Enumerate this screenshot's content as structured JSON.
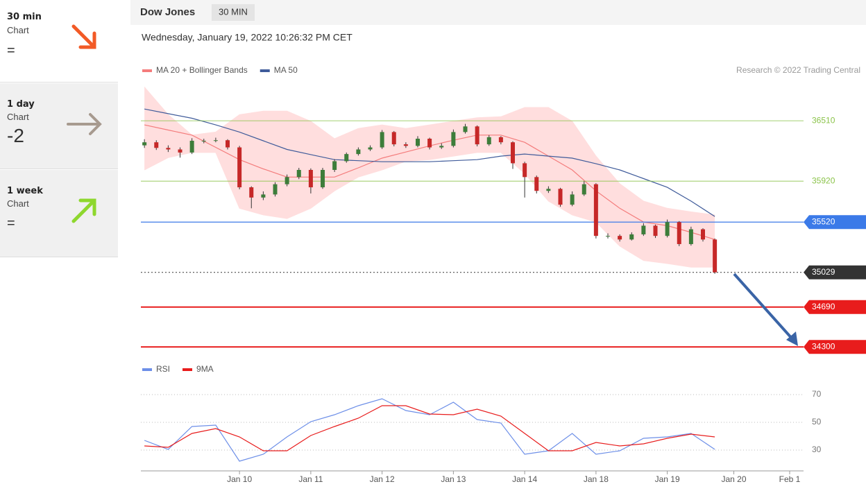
{
  "sidebar": [
    {
      "period": "30 min",
      "label": "Chart",
      "score": "="
    },
    {
      "period": "1 day",
      "label": "Chart",
      "score": "-2"
    },
    {
      "period": "1 week",
      "label": "Chart",
      "score": "="
    }
  ],
  "header": {
    "title": "Dow Jones",
    "interval": "30 MIN",
    "timestamp": "Wednesday, January 19, 2022 10:26:32 PM CET"
  },
  "chart_data": [
    {
      "type": "candlestick",
      "credit": "Research © 2022 Trading Central",
      "x": [
        0,
        1,
        2,
        3,
        4,
        5,
        6,
        7,
        8,
        9,
        10,
        11,
        12,
        13,
        14,
        15,
        16,
        17,
        18,
        19,
        20,
        21,
        22,
        23,
        24,
        25,
        26,
        27,
        28,
        29,
        30,
        31,
        32,
        33,
        34,
        35,
        36,
        37,
        38,
        39,
        40,
        41,
        42,
        43,
        44,
        45,
        46,
        47,
        48
      ],
      "open": [
        36270,
        36300,
        36245,
        36230,
        36200,
        36315,
        36315,
        36320,
        36250,
        35860,
        35760,
        35790,
        35890,
        35960,
        36030,
        35860,
        36030,
        36115,
        36185,
        36230,
        36250,
        36400,
        36280,
        36265,
        36335,
        36250,
        36265,
        36400,
        36455,
        36280,
        36350,
        36300,
        36095,
        35960,
        35825,
        35845,
        35690,
        35790,
        35890,
        35385,
        35385,
        35350,
        35400,
        35485,
        35385,
        35520,
        35305,
        35450,
        35350
      ],
      "high": [
        36330,
        36320,
        36270,
        36250,
        36340,
        36335,
        36345,
        36330,
        36265,
        35870,
        35820,
        35910,
        35985,
        36050,
        36045,
        36050,
        36135,
        36200,
        36250,
        36270,
        36420,
        36410,
        36300,
        36360,
        36345,
        36290,
        36425,
        36480,
        36465,
        36370,
        36360,
        36310,
        36110,
        35975,
        35870,
        35855,
        35820,
        35920,
        35900,
        35410,
        35400,
        35420,
        35510,
        35495,
        35545,
        35530,
        35475,
        35460,
        35360
      ],
      "low": [
        36245,
        36225,
        36205,
        36150,
        36185,
        36290,
        36300,
        36230,
        35840,
        35655,
        35735,
        35770,
        35870,
        35940,
        35800,
        35845,
        36010,
        36100,
        36170,
        36215,
        36235,
        36260,
        36245,
        36250,
        36230,
        36235,
        36250,
        36385,
        36260,
        36265,
        36280,
        36040,
        35760,
        35800,
        35805,
        35670,
        35675,
        35775,
        35360,
        35360,
        35330,
        35340,
        35385,
        35365,
        35370,
        35285,
        35290,
        35330,
        35015
      ],
      "close": [
        36300,
        36245,
        36230,
        36200,
        36315,
        36315,
        36320,
        36250,
        35860,
        35760,
        35790,
        35890,
        35960,
        36030,
        35860,
        36030,
        36115,
        36185,
        36230,
        36250,
        36400,
        36280,
        36265,
        36335,
        36250,
        36265,
        36400,
        36455,
        36280,
        36350,
        36300,
        36095,
        35960,
        35825,
        35845,
        35690,
        35790,
        35890,
        35385,
        35385,
        35350,
        35400,
        35485,
        35385,
        35520,
        35305,
        35450,
        35350,
        35029
      ],
      "up_color": "#3d7d3a",
      "down_color": "#c62828",
      "series": [
        {
          "name": "MA 20 + Bollinger Bands",
          "color": "#f47c7c",
          "band_color": "#ffdede",
          "x": [
            0,
            2,
            4,
            6,
            8,
            10,
            12,
            14,
            16,
            18,
            20,
            22,
            24,
            26,
            28,
            30,
            32,
            34,
            36,
            38,
            40,
            42,
            44,
            46,
            48
          ],
          "values": [
            36470,
            36420,
            36370,
            36250,
            36130,
            36040,
            35960,
            35960,
            35960,
            36050,
            36145,
            36205,
            36265,
            36320,
            36370,
            36370,
            36300,
            36165,
            36030,
            35825,
            35655,
            35520,
            35485,
            35420,
            35350
          ],
          "upper": [
            36840,
            36570,
            36370,
            36400,
            36570,
            36605,
            36605,
            36505,
            36335,
            36435,
            36470,
            36435,
            36470,
            36505,
            36540,
            36550,
            36640,
            36640,
            36505,
            36165,
            35895,
            35725,
            35655,
            35620,
            35590
          ],
          "lower": [
            36030,
            36150,
            36200,
            36200,
            35655,
            35590,
            35555,
            35655,
            35825,
            35960,
            36030,
            36115,
            36130,
            36165,
            36200,
            36200,
            35995,
            35725,
            35590,
            35520,
            35285,
            35145,
            35115,
            35080,
            35080
          ]
        },
        {
          "name": "MA 50",
          "color": "#3f5b9a",
          "x": [
            0,
            2,
            4,
            6,
            8,
            10,
            12,
            14,
            16,
            18,
            20,
            22,
            24,
            26,
            28,
            30,
            32,
            34,
            36,
            38,
            40,
            42,
            44,
            46,
            48
          ],
          "values": [
            36625,
            36580,
            36535,
            36470,
            36400,
            36315,
            36230,
            36180,
            36130,
            36120,
            36110,
            36110,
            36110,
            36120,
            36130,
            36165,
            36185,
            36165,
            36145,
            36090,
            36030,
            35945,
            35860,
            35725,
            35575
          ]
        }
      ],
      "levels": [
        {
          "value": 36510,
          "color": "#8bc34a",
          "boxed": false,
          "line": "solid"
        },
        {
          "value": 35920,
          "color": "#8bc34a",
          "boxed": false,
          "line": "solid"
        },
        {
          "value": 35520,
          "color": "#3b7ae8",
          "boxed": true,
          "line": "solid"
        },
        {
          "value": 35029,
          "color": "#333333",
          "boxed": true,
          "line": "dotted"
        },
        {
          "value": 34690,
          "color": "#e81c1c",
          "boxed": true,
          "line": "solid"
        },
        {
          "value": 34300,
          "color": "#e81c1c",
          "boxed": true,
          "line": "solid"
        }
      ],
      "xlim": [
        -0.3,
        55
      ],
      "ylim": [
        34200,
        36945
      ]
    },
    {
      "type": "line",
      "series": [
        {
          "name": "RSI",
          "color": "#6d8fe8",
          "x": [
            0,
            2,
            4,
            6,
            8,
            10,
            12,
            14,
            16,
            18,
            20,
            22,
            24,
            26,
            28,
            30,
            32,
            34,
            36,
            38,
            40,
            42,
            44,
            46,
            48
          ],
          "values": [
            37,
            30.5,
            47,
            48,
            22,
            27,
            39.5,
            50.5,
            55.5,
            62,
            67,
            58.5,
            55.5,
            64.5,
            52,
            49.5,
            27,
            29.5,
            42,
            27,
            29.5,
            38.5,
            39.5,
            42,
            30.5
          ]
        },
        {
          "name": "9MA",
          "color": "#e81c1c",
          "x": [
            0,
            2,
            4,
            6,
            8,
            10,
            12,
            14,
            16,
            18,
            20,
            22,
            24,
            26,
            28,
            30,
            32,
            34,
            36,
            38,
            40,
            42,
            44,
            46,
            48
          ],
          "values": [
            33,
            32,
            42,
            45.5,
            39.5,
            29.5,
            29.5,
            40.5,
            47,
            53,
            62,
            62,
            56,
            55.5,
            59.5,
            54.5,
            42,
            29.5,
            29.5,
            35.5,
            33,
            34.5,
            38.5,
            41.5,
            39.5
          ]
        }
      ],
      "xlim": [
        -0.3,
        55
      ],
      "ylim": [
        15,
        80
      ],
      "yticks": [
        70,
        50,
        30
      ],
      "grid": true,
      "xticks": [
        {
          "value": 8,
          "label": "Jan 10"
        },
        {
          "value": 14,
          "label": "Jan 11"
        },
        {
          "value": 20,
          "label": "Jan 12"
        },
        {
          "value": 26,
          "label": "Jan 13"
        },
        {
          "value": 32,
          "label": "Jan 14"
        },
        {
          "value": 38,
          "label": "Jan 18"
        },
        {
          "value": 44,
          "label": "Jan 19"
        },
        {
          "value": 49.6,
          "label": "Jan 20"
        },
        {
          "value": 54.3,
          "label": "Feb 1"
        }
      ]
    }
  ]
}
